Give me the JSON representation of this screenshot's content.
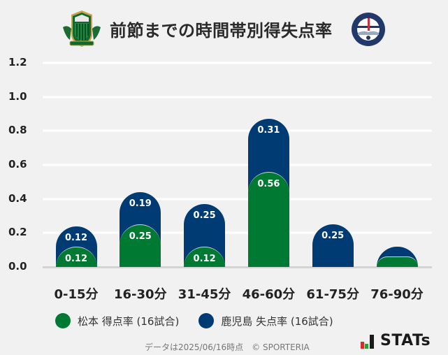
{
  "header": {
    "title": "前節までの時間帯別得失点率",
    "home_logo": "matsumoto-yamaga-crest",
    "away_logo": "kagoshima-united-crest",
    "away_logo_text_top": "KAGOSHIMA",
    "away_logo_text_bottom": "UNITED FC"
  },
  "colors": {
    "home": "#007a33",
    "away": "#003b73",
    "background": "#f1f1f1",
    "grid": "#ffffff",
    "baseline": "#d3d3d3"
  },
  "yaxis": {
    "ticks": [
      "0.0",
      "0.2",
      "0.4",
      "0.6",
      "0.8",
      "1.0",
      "1.2"
    ]
  },
  "chart_data": {
    "type": "bar",
    "stacked": true,
    "title": "前節までの時間帯別得失点率",
    "xlabel": "",
    "ylabel": "",
    "ylim": [
      0,
      1.2
    ],
    "grid": true,
    "legend_position": "bottom",
    "categories": [
      "0-15分",
      "16-30分",
      "31-45分",
      "46-60分",
      "61-75分",
      "76-90分"
    ],
    "series": [
      {
        "name": "松本 得点率 (16試合)",
        "color": "#007a33",
        "values": [
          0.12,
          0.25,
          0.12,
          0.56,
          0.0,
          0.06
        ],
        "labels": [
          "0.12",
          "0.25",
          "0.12",
          "0.56",
          "",
          ""
        ]
      },
      {
        "name": "鹿児島 失点率 (16試合)",
        "color": "#003b73",
        "values": [
          0.12,
          0.19,
          0.25,
          0.31,
          0.25,
          0.06
        ],
        "labels": [
          "0.12",
          "0.19",
          "0.25",
          "0.31",
          "0.25",
          ""
        ]
      }
    ]
  },
  "legend": {
    "home_label": "松本 得点率 (16試合)",
    "away_label": "鹿児島 失点率 (16試合)"
  },
  "footer": {
    "note": "データは2025/06/16時点　© SPORTERIA",
    "brand": "STATs"
  }
}
